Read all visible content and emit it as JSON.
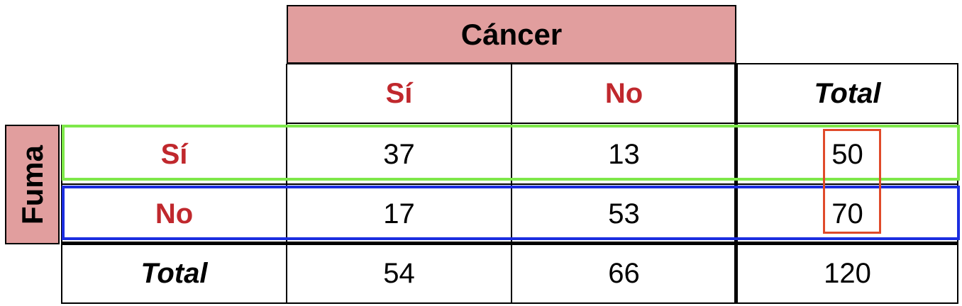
{
  "chart_data": {
    "type": "table",
    "col_group_header": "Cáncer",
    "row_group_header": "Fuma",
    "col_headers": [
      "Sí",
      "No",
      "Total"
    ],
    "rows": [
      {
        "label": "Sí",
        "values": [
          "37",
          "13",
          "50"
        ]
      },
      {
        "label": "No",
        "values": [
          "17",
          "53",
          "70"
        ]
      },
      {
        "label": "Total",
        "values": [
          "54",
          "66",
          "120"
        ]
      }
    ],
    "highlights": [
      {
        "target": "row 1",
        "color": "#7ee84a"
      },
      {
        "target": "row 2",
        "color": "#1c2ee0"
      },
      {
        "target": "total column rows 1-2",
        "color": "#e04a2a"
      }
    ]
  }
}
